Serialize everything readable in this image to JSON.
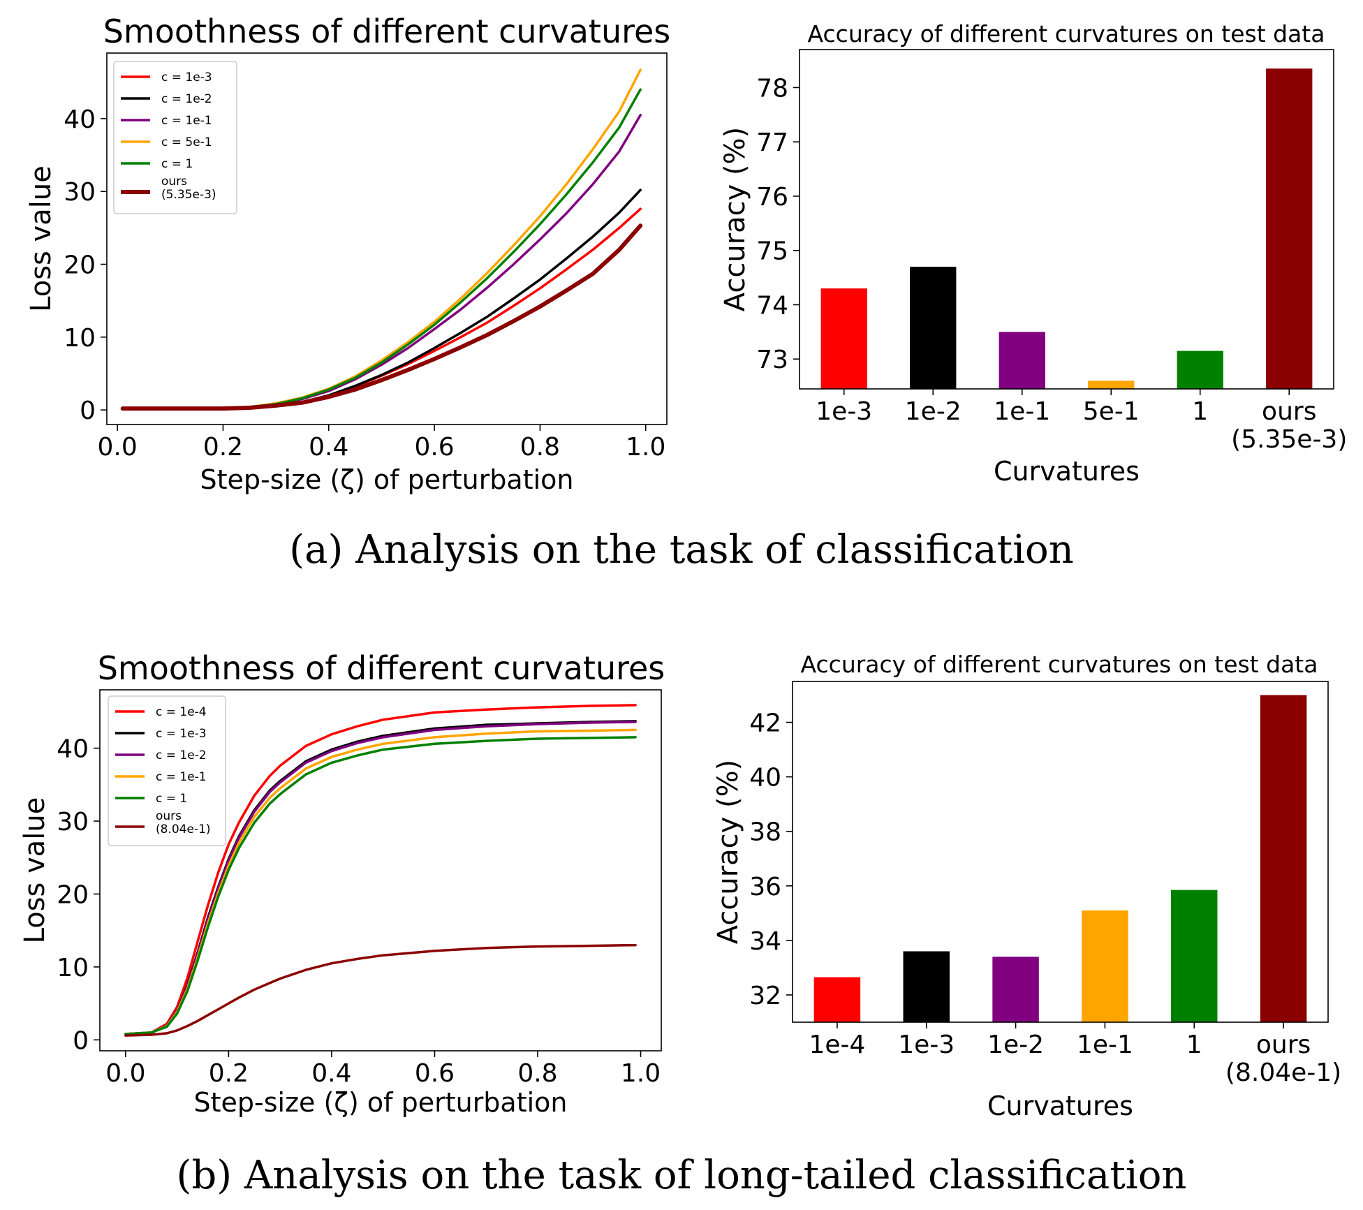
{
  "captions": {
    "a": "(a) Analysis on the task of classification",
    "b": "(b) Analysis on the task of long-tailed classification"
  },
  "chart_data": [
    {
      "id": "line_a",
      "type": "line",
      "title": "Smoothness of different curvatures",
      "xlabel": "Step-size (ζ) of perturbation",
      "ylabel": "Loss value",
      "xlim": [
        -0.02,
        1.04
      ],
      "ylim": [
        -2,
        49
      ],
      "xticks": [
        0.0,
        0.2,
        0.4,
        0.6,
        0.8,
        1.0
      ],
      "xtick_labels": [
        "0.0",
        "0.2",
        "0.4",
        "0.6",
        "0.8",
        "1.0"
      ],
      "yticks": [
        0,
        10,
        20,
        30,
        40
      ],
      "ytick_labels": [
        "0",
        "10",
        "20",
        "30",
        "40"
      ],
      "grid": false,
      "legend_position": "top-left",
      "x": [
        0.01,
        0.05,
        0.1,
        0.15,
        0.2,
        0.25,
        0.3,
        0.35,
        0.4,
        0.45,
        0.5,
        0.55,
        0.6,
        0.65,
        0.7,
        0.75,
        0.8,
        0.85,
        0.9,
        0.95,
        0.99
      ],
      "series": [
        {
          "name": "c = 1e-3",
          "color": "#ff0000",
          "thick": false,
          "values": [
            0.2,
            0.2,
            0.2,
            0.2,
            0.2,
            0.3,
            0.6,
            1.1,
            2.0,
            3.2,
            4.7,
            6.3,
            8.1,
            10.0,
            12.0,
            14.3,
            16.7,
            19.3,
            22.0,
            25.0,
            27.6
          ]
        },
        {
          "name": "c = 1e-2",
          "color": "#000000",
          "thick": false,
          "values": [
            0.2,
            0.2,
            0.2,
            0.2,
            0.2,
            0.3,
            0.6,
            1.1,
            2.0,
            3.3,
            4.8,
            6.5,
            8.5,
            10.6,
            12.8,
            15.3,
            17.9,
            20.8,
            23.8,
            27.1,
            30.2
          ]
        },
        {
          "name": "c = 1e-1",
          "color": "#800080",
          "thick": false,
          "values": [
            0.2,
            0.2,
            0.2,
            0.2,
            0.2,
            0.4,
            0.8,
            1.5,
            2.6,
            4.2,
            6.2,
            8.5,
            11.1,
            13.8,
            16.8,
            20.0,
            23.4,
            27.0,
            31.0,
            35.5,
            40.5
          ]
        },
        {
          "name": "c = 5e-1",
          "color": "#ffa500",
          "thick": false,
          "values": [
            0.2,
            0.2,
            0.2,
            0.2,
            0.2,
            0.4,
            0.9,
            1.7,
            2.9,
            4.6,
            6.8,
            9.3,
            12.1,
            15.3,
            18.8,
            22.6,
            26.6,
            31.0,
            35.8,
            41.0,
            46.7
          ]
        },
        {
          "name": "c = 1",
          "color": "#008000",
          "thick": false,
          "values": [
            0.2,
            0.2,
            0.2,
            0.2,
            0.2,
            0.4,
            0.8,
            1.6,
            2.8,
            4.4,
            6.5,
            9.0,
            11.7,
            14.8,
            18.1,
            21.7,
            25.5,
            29.6,
            34.0,
            38.8,
            44.0
          ]
        },
        {
          "name": "ours\n(5.35e-3)",
          "color": "#8b0000",
          "thick": true,
          "values": [
            0.2,
            0.2,
            0.2,
            0.2,
            0.2,
            0.3,
            0.6,
            1.0,
            1.8,
            2.8,
            4.1,
            5.5,
            7.0,
            8.6,
            10.3,
            12.2,
            14.2,
            16.4,
            18.7,
            22.0,
            25.3
          ]
        }
      ]
    },
    {
      "id": "bar_a",
      "type": "bar",
      "title": "Accuracy of different curvatures on test data",
      "xlabel": "Curvatures",
      "ylabel": "Accuracy (%)",
      "ylim": [
        72.45,
        78.7
      ],
      "yticks": [
        73,
        74,
        75,
        76,
        77,
        78
      ],
      "ytick_labels": [
        "73",
        "74",
        "75",
        "76",
        "77",
        "78"
      ],
      "categories": [
        "1e-3",
        "1e-2",
        "1e-1",
        "5e-1",
        "1",
        "ours\n(5.35e-3)"
      ],
      "values": [
        74.3,
        74.7,
        73.5,
        72.6,
        73.15,
        78.35
      ],
      "colors": [
        "#ff0000",
        "#000000",
        "#800080",
        "#ffa500",
        "#008000",
        "#8b0000"
      ]
    },
    {
      "id": "line_b",
      "type": "line",
      "title": "Smoothness of different curvatures",
      "xlabel": "Step-size (ζ) of perturbation",
      "ylabel": "Loss value",
      "xlim": [
        -0.05,
        1.04
      ],
      "ylim": [
        -1.5,
        48
      ],
      "xticks": [
        0.0,
        0.2,
        0.4,
        0.6,
        0.8,
        1.0
      ],
      "xtick_labels": [
        "0.0",
        "0.2",
        "0.4",
        "0.6",
        "0.8",
        "1.0"
      ],
      "yticks": [
        0,
        10,
        20,
        30,
        40
      ],
      "ytick_labels": [
        "0",
        "10",
        "20",
        "30",
        "40"
      ],
      "grid": false,
      "legend_position": "top-left",
      "x": [
        0.0,
        0.05,
        0.08,
        0.1,
        0.12,
        0.14,
        0.16,
        0.18,
        0.2,
        0.22,
        0.25,
        0.28,
        0.3,
        0.35,
        0.4,
        0.45,
        0.5,
        0.6,
        0.7,
        0.8,
        0.9,
        0.99
      ],
      "series": [
        {
          "name": "c = 1e-4",
          "color": "#ff0000",
          "thick": false,
          "values": [
            0.8,
            1.0,
            2.2,
            4.5,
            8.5,
            13.5,
            18.5,
            23.0,
            26.8,
            29.8,
            33.5,
            36.2,
            37.6,
            40.3,
            41.9,
            43.0,
            43.9,
            44.9,
            45.3,
            45.6,
            45.8,
            45.9
          ]
        },
        {
          "name": "c = 1e-3",
          "color": "#000000",
          "thick": false,
          "values": [
            0.8,
            1.0,
            2.0,
            4.0,
            7.5,
            12.0,
            16.8,
            21.0,
            24.8,
            27.9,
            31.5,
            34.2,
            35.5,
            38.2,
            39.8,
            40.9,
            41.7,
            42.7,
            43.2,
            43.4,
            43.6,
            43.7
          ]
        },
        {
          "name": "c = 1e-2",
          "color": "#800080",
          "thick": false,
          "values": [
            0.8,
            1.0,
            2.0,
            4.0,
            7.4,
            11.8,
            16.5,
            20.8,
            24.6,
            27.7,
            31.3,
            34.0,
            35.3,
            38.0,
            39.6,
            40.7,
            41.5,
            42.5,
            43.0,
            43.3,
            43.5,
            43.6
          ]
        },
        {
          "name": "c = 1e-1",
          "color": "#ffa500",
          "thick": false,
          "values": [
            0.8,
            1.0,
            1.9,
            3.8,
            7.0,
            11.3,
            16.0,
            20.2,
            23.9,
            27.0,
            30.6,
            33.2,
            34.5,
            37.2,
            38.8,
            39.8,
            40.6,
            41.5,
            42.0,
            42.3,
            42.4,
            42.5
          ]
        },
        {
          "name": "c = 1",
          "color": "#008000",
          "thick": false,
          "values": [
            0.8,
            1.0,
            1.8,
            3.6,
            6.7,
            10.9,
            15.5,
            19.7,
            23.3,
            26.3,
            29.8,
            32.4,
            33.7,
            36.4,
            38.0,
            39.0,
            39.8,
            40.6,
            41.0,
            41.3,
            41.4,
            41.5
          ]
        },
        {
          "name": "ours\n(8.04e-1)",
          "color": "#8b0000",
          "thick": false,
          "values": [
            0.6,
            0.7,
            0.9,
            1.3,
            1.9,
            2.6,
            3.4,
            4.2,
            5.0,
            5.8,
            6.9,
            7.8,
            8.4,
            9.6,
            10.5,
            11.1,
            11.6,
            12.2,
            12.6,
            12.8,
            12.9,
            13.0
          ]
        }
      ]
    },
    {
      "id": "bar_b",
      "type": "bar",
      "title": "Accuracy of different curvatures  on test data",
      "xlabel": "Curvatures",
      "ylabel": "Accuracy (%)",
      "ylim": [
        31.0,
        43.5
      ],
      "yticks": [
        32,
        34,
        36,
        38,
        40,
        42
      ],
      "ytick_labels": [
        "32",
        "34",
        "36",
        "38",
        "40",
        "42"
      ],
      "categories": [
        "1e-4",
        "1e-3",
        "1e-2",
        "1e-1",
        "1",
        "ours\n(8.04e-1)"
      ],
      "values": [
        32.65,
        33.6,
        33.4,
        35.1,
        35.85,
        43.0
      ],
      "colors": [
        "#ff0000",
        "#000000",
        "#800080",
        "#ffa500",
        "#008000",
        "#8b0000"
      ]
    }
  ]
}
